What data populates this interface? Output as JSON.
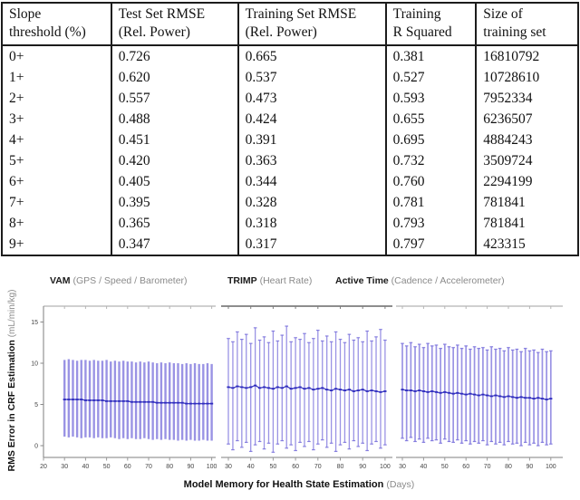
{
  "table": {
    "headers": [
      {
        "line1": "Slope",
        "line2": "threshold (%)"
      },
      {
        "line1": "Test Set RMSE",
        "line2": "(Rel. Power)"
      },
      {
        "line1": "Training Set RMSE",
        "line2": "(Rel. Power)"
      },
      {
        "line1": "Training",
        "line2": "R Squared"
      },
      {
        "line1": "Size of",
        "line2": "training set"
      }
    ],
    "rows": [
      [
        "0+",
        "0.726",
        "0.665",
        "0.381",
        "16810792"
      ],
      [
        "1+",
        "0.620",
        "0.537",
        "0.527",
        "10728610"
      ],
      [
        "2+",
        "0.557",
        "0.473",
        "0.593",
        "7952334"
      ],
      [
        "3+",
        "0.488",
        "0.424",
        "0.655",
        "6236507"
      ],
      [
        "4+",
        "0.451",
        "0.391",
        "0.695",
        "4884243"
      ],
      [
        "5+",
        "0.420",
        "0.363",
        "0.732",
        "3509724"
      ],
      [
        "6+",
        "0.405",
        "0.344",
        "0.760",
        "2294199"
      ],
      [
        "7+",
        "0.395",
        "0.328",
        "0.781",
        "781841"
      ],
      [
        "8+",
        "0.365",
        "0.318",
        "0.793",
        "781841"
      ],
      [
        "9+",
        "0.347",
        "0.317",
        "0.797",
        "423315"
      ]
    ]
  },
  "chart_data": {
    "type": "errorbar",
    "title": "",
    "xlabel_bold": "Model Memory for Health State Estimation",
    "xlabel_unit": "(Days)",
    "ylabel_bold": "RMS Error in CRF Estimation",
    "ylabel_unit": "(mL/min/kg)",
    "ylim": [
      -1.5,
      17
    ],
    "yticks": [
      0,
      5,
      10,
      15
    ],
    "grid": false,
    "bar_color": "#8179de",
    "mean_color": "#2d2bbd",
    "axis_color": "#999999",
    "panels": [
      {
        "title_bold": "VAM",
        "title_rest": "(GPS / Speed / Barometer)",
        "xticks": [
          20,
          30,
          40,
          50,
          60,
          70,
          80,
          90,
          100
        ],
        "caps": false,
        "x": [
          30,
          32,
          34,
          36,
          38,
          40,
          42,
          44,
          46,
          48,
          50,
          52,
          54,
          56,
          58,
          60,
          62,
          64,
          66,
          68,
          70,
          72,
          74,
          76,
          78,
          80,
          82,
          84,
          86,
          88,
          90,
          92,
          94,
          96,
          98,
          100
        ],
        "high": [
          10.4,
          10.5,
          10.4,
          10.3,
          10.4,
          10.4,
          10.3,
          10.4,
          10.3,
          10.3,
          10.4,
          10.2,
          10.3,
          10.2,
          10.3,
          10.2,
          10.2,
          10.1,
          10.2,
          10.1,
          10.2,
          10.1,
          10.0,
          10.1,
          10.0,
          10.1,
          10.0,
          10.0,
          9.9,
          10.0,
          9.9,
          10.0,
          9.9,
          9.9,
          10.0,
          9.9
        ],
        "low": [
          1.1,
          1.0,
          1.1,
          1.0,
          0.9,
          1.0,
          1.0,
          0.9,
          1.0,
          0.9,
          0.9,
          1.0,
          0.9,
          0.8,
          0.9,
          0.8,
          0.9,
          0.8,
          0.8,
          0.9,
          0.8,
          0.7,
          0.8,
          0.7,
          0.8,
          0.7,
          0.7,
          0.6,
          0.7,
          0.6,
          0.7,
          0.6,
          0.6,
          0.7,
          0.6,
          0.6
        ],
        "mean": [
          5.6,
          5.6,
          5.6,
          5.6,
          5.6,
          5.5,
          5.5,
          5.5,
          5.5,
          5.5,
          5.4,
          5.4,
          5.4,
          5.4,
          5.4,
          5.4,
          5.3,
          5.3,
          5.3,
          5.3,
          5.3,
          5.3,
          5.2,
          5.2,
          5.2,
          5.2,
          5.2,
          5.2,
          5.2,
          5.1,
          5.1,
          5.1,
          5.1,
          5.1,
          5.1,
          5.1
        ]
      },
      {
        "title_bold": "TRIMP",
        "title_rest": "(Heart Rate)",
        "xticks": [
          30,
          40,
          50,
          60,
          70,
          80,
          90,
          100
        ],
        "caps": true,
        "x": [
          30,
          32,
          34,
          36,
          38,
          40,
          42,
          44,
          46,
          48,
          50,
          52,
          54,
          56,
          58,
          60,
          62,
          64,
          66,
          68,
          70,
          72,
          74,
          76,
          78,
          80,
          82,
          84,
          86,
          88,
          90,
          92,
          94,
          96,
          98,
          100
        ],
        "high": [
          13.0,
          12.6,
          13.8,
          12.9,
          13.5,
          12.4,
          14.3,
          12.8,
          13.2,
          12.5,
          13.9,
          12.7,
          13.4,
          14.5,
          12.6,
          13.1,
          12.9,
          13.6,
          12.5,
          13.0,
          14.0,
          12.7,
          13.3,
          12.6,
          13.8,
          12.9,
          12.5,
          13.5,
          12.8,
          13.1,
          12.6,
          13.9,
          12.7,
          13.2,
          14.1,
          12.8
        ],
        "low": [
          0.2,
          -0.5,
          0.6,
          -0.2,
          0.4,
          -0.7,
          0.1,
          0.5,
          -0.4,
          0.3,
          -0.8,
          0.2,
          0.6,
          -0.3,
          0.1,
          -0.6,
          0.4,
          -0.1,
          0.5,
          -0.5,
          0.2,
          0.7,
          -0.2,
          0.3,
          -0.7,
          0.1,
          0.4,
          -0.4,
          0.6,
          -0.1,
          0.3,
          -0.6,
          0.2,
          0.5,
          -0.3,
          0.1
        ],
        "mean": [
          7.1,
          7.0,
          7.2,
          7.1,
          7.0,
          7.1,
          7.3,
          7.0,
          7.1,
          7.0,
          6.9,
          7.1,
          7.0,
          7.2,
          6.9,
          7.0,
          7.1,
          6.9,
          7.0,
          6.8,
          6.9,
          7.0,
          6.8,
          6.7,
          6.9,
          6.8,
          6.7,
          6.8,
          6.6,
          6.7,
          6.8,
          6.6,
          6.7,
          6.6,
          6.5,
          6.6
        ]
      },
      {
        "title_bold": "Active Time",
        "title_rest": "(Cadence / Accelerometer)",
        "xticks": [
          30,
          40,
          50,
          60,
          70,
          80,
          90,
          100
        ],
        "caps": true,
        "x": [
          30,
          32,
          34,
          36,
          38,
          40,
          42,
          44,
          46,
          48,
          50,
          52,
          54,
          56,
          58,
          60,
          62,
          64,
          66,
          68,
          70,
          72,
          74,
          76,
          78,
          80,
          82,
          84,
          86,
          88,
          90,
          92,
          94,
          96,
          98,
          100
        ],
        "high": [
          12.4,
          12.1,
          12.5,
          12.0,
          12.3,
          11.9,
          12.4,
          12.1,
          12.2,
          11.8,
          12.3,
          12.0,
          11.9,
          12.2,
          11.8,
          12.1,
          11.7,
          12.0,
          11.8,
          11.9,
          11.6,
          12.0,
          11.7,
          11.8,
          11.5,
          11.9,
          11.6,
          11.7,
          11.4,
          11.8,
          11.5,
          11.6,
          11.3,
          11.7,
          11.4,
          11.5
        ],
        "low": [
          0.9,
          0.6,
          1.0,
          0.5,
          0.8,
          0.4,
          0.9,
          0.6,
          0.7,
          0.3,
          0.8,
          0.5,
          0.4,
          0.7,
          0.3,
          0.6,
          0.2,
          0.5,
          0.3,
          0.6,
          0.1,
          0.5,
          0.2,
          0.4,
          0.1,
          0.5,
          0.2,
          0.3,
          0.0,
          0.4,
          0.1,
          0.3,
          0.0,
          0.4,
          0.1,
          0.2
        ],
        "mean": [
          6.8,
          6.7,
          6.7,
          6.6,
          6.7,
          6.6,
          6.5,
          6.6,
          6.5,
          6.4,
          6.5,
          6.4,
          6.3,
          6.4,
          6.3,
          6.2,
          6.3,
          6.2,
          6.1,
          6.2,
          6.1,
          6.0,
          6.1,
          6.0,
          5.9,
          6.0,
          5.9,
          5.8,
          5.9,
          5.8,
          5.8,
          5.7,
          5.8,
          5.7,
          5.6,
          5.7
        ]
      }
    ]
  }
}
